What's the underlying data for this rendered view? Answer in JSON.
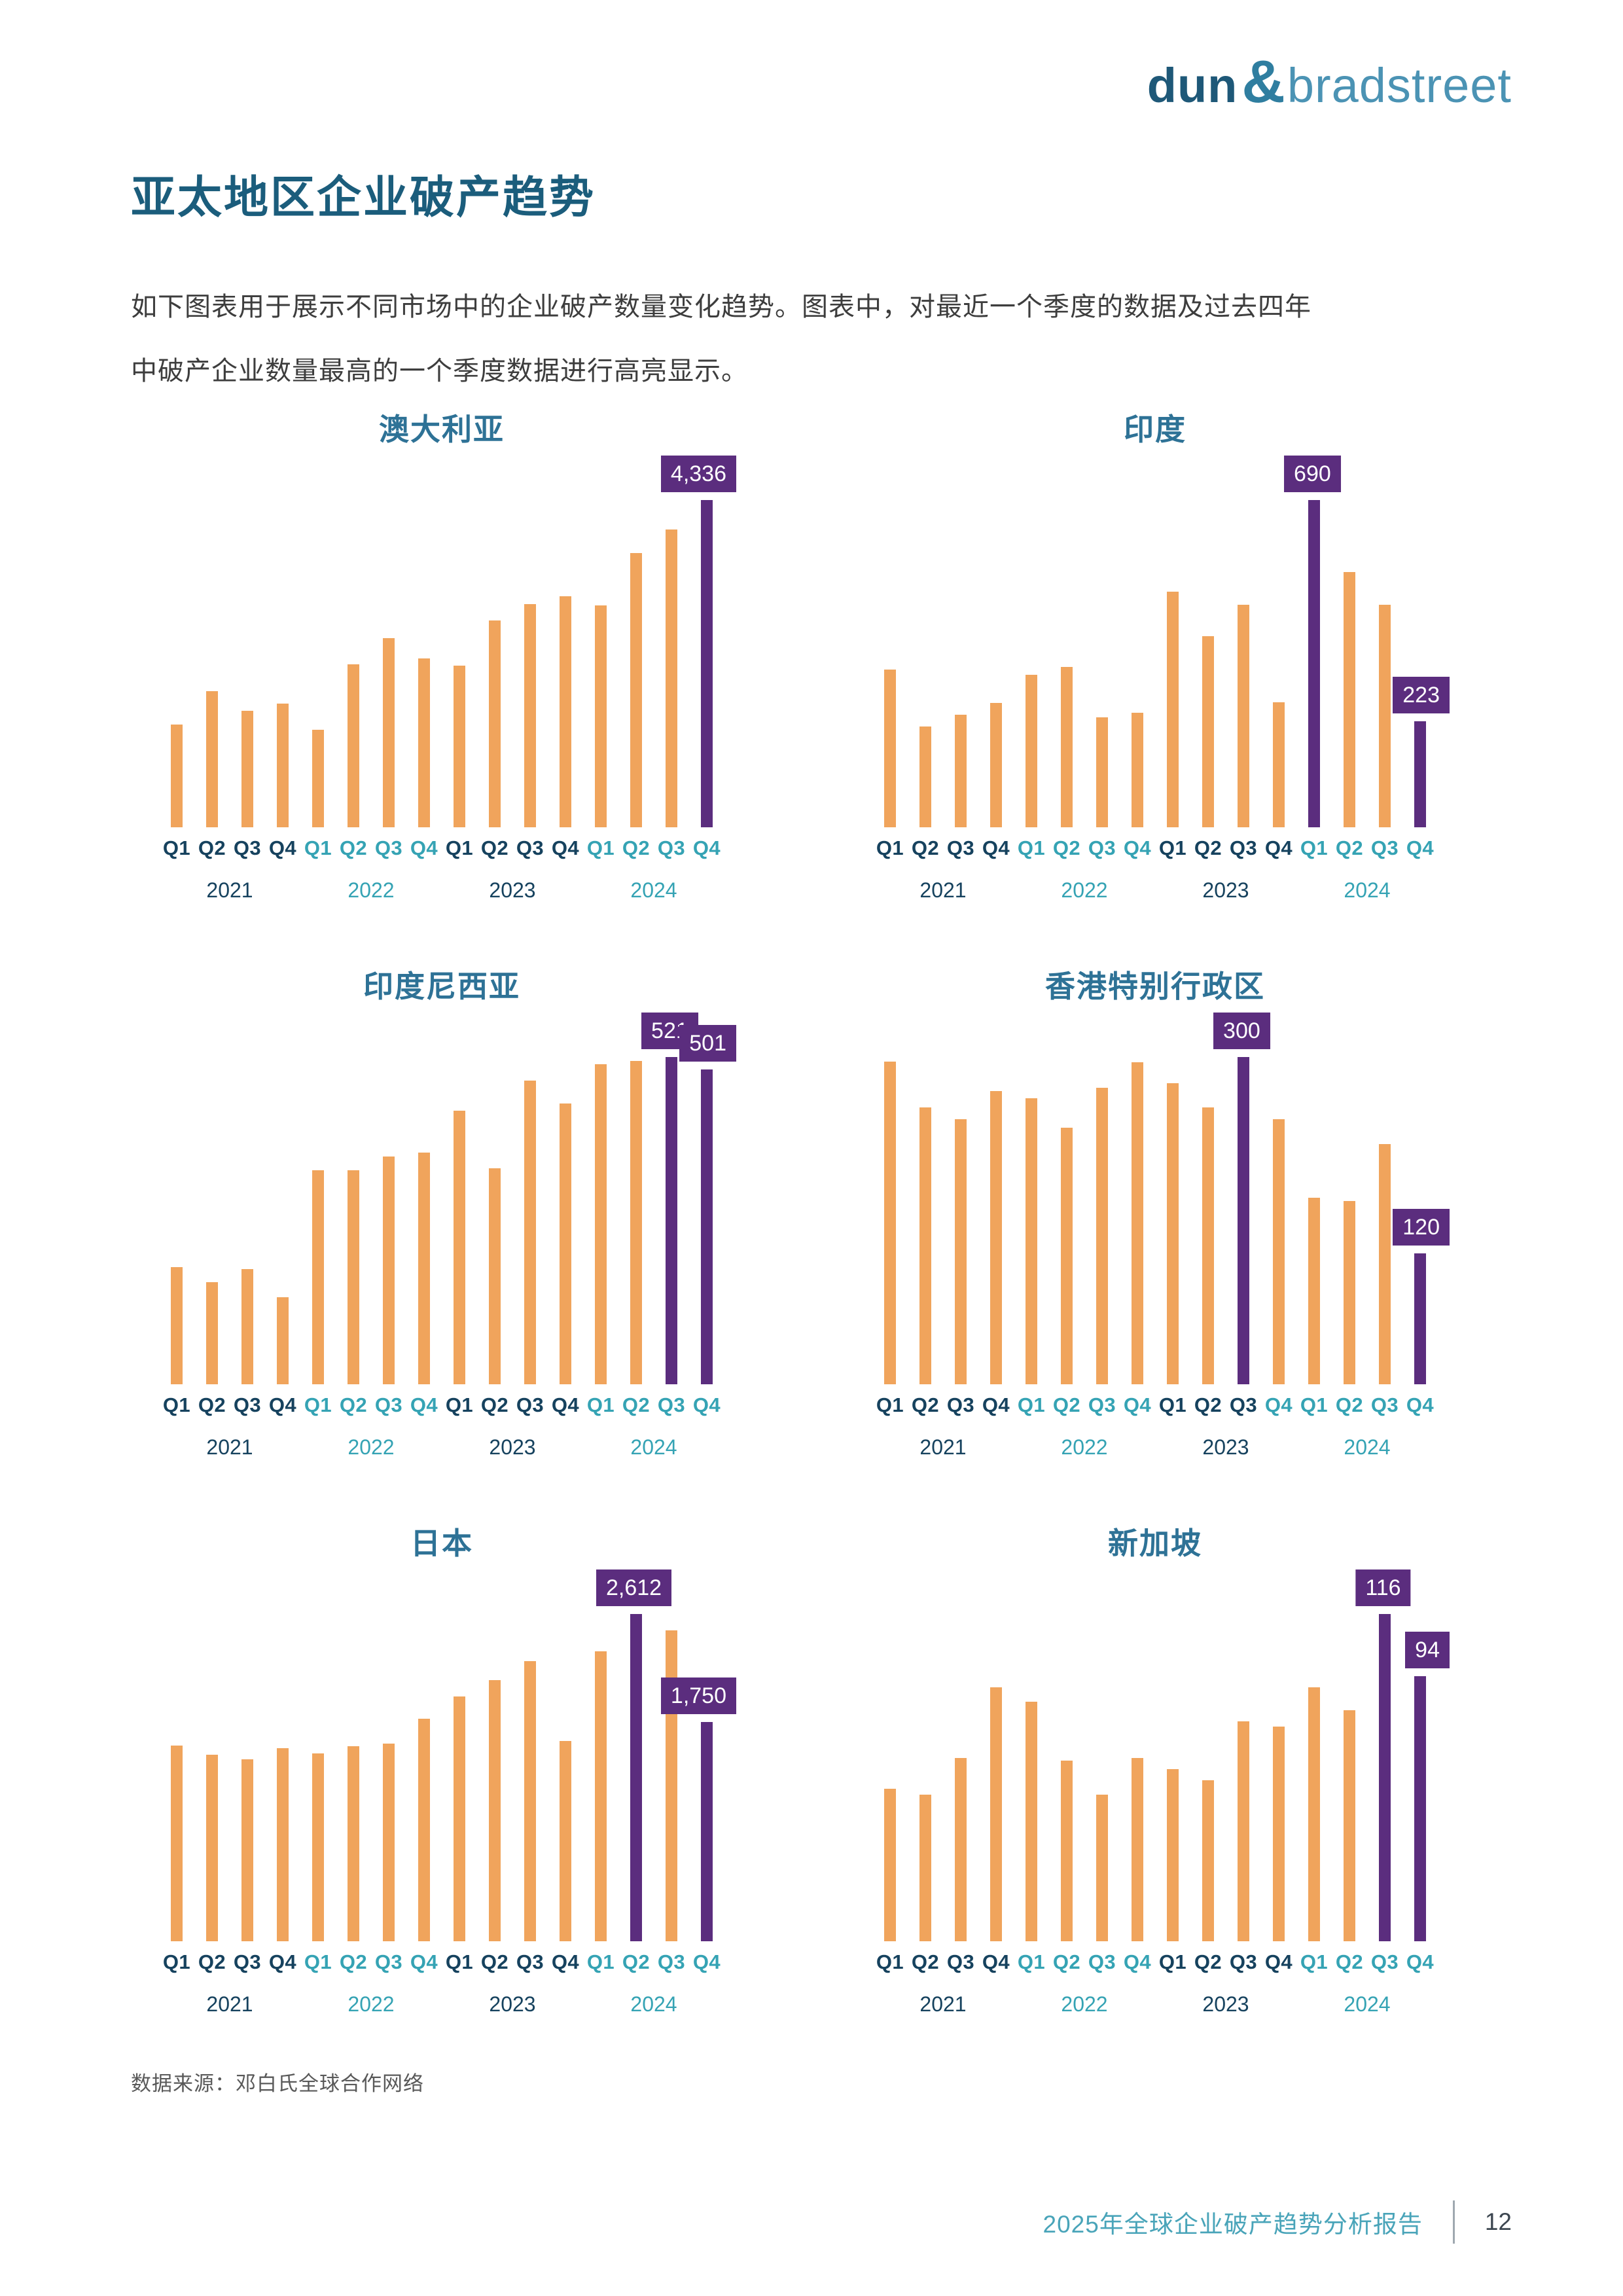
{
  "page": {
    "logo": {
      "dun": "dun",
      "amp": "&",
      "bradstreet": "bradstreet"
    },
    "title": "亚太地区企业破产趋势",
    "intro_line1": "如下图表用于展示不同市场中的企业破产数量变化趋势。图表中，对最近一个季度的数据及过去四年",
    "intro_line2": "中破产企业数量最高的一个季度数据进行高亮显示。",
    "source_note": "数据来源：邓白氏全球合作网络",
    "footer": {
      "report_title": "2025年全球企业破产趋势分析报告",
      "page_number": "12"
    }
  },
  "colors": {
    "bar_orange": "#F0A45C",
    "bar_purple": "#5B2D7E",
    "page_title": "#1B5D7C",
    "chart_title": "#2E7296",
    "label_dark": "#16425E",
    "label_teal": "#35A3B4",
    "logo_dark": "#1E5878",
    "logo_light": "#4B93B4",
    "footer_teal": "#49A4B9",
    "footer_page_number": "#3C4650",
    "intro_text": "#3D3D3D",
    "source_text": "#595959"
  },
  "axis": {
    "quarters": [
      "Q1",
      "Q2",
      "Q3",
      "Q4"
    ],
    "years": [
      "2021",
      "2022",
      "2023",
      "2024"
    ],
    "categories": [
      "2021-Q1",
      "2021-Q2",
      "2021-Q3",
      "2021-Q4",
      "2022-Q1",
      "2022-Q2",
      "2022-Q3",
      "2022-Q4",
      "2023-Q1",
      "2023-Q2",
      "2023-Q3",
      "2023-Q4",
      "2024-Q1",
      "2024-Q2",
      "2024-Q3",
      "2024-Q4"
    ]
  },
  "chart_data": [
    {
      "type": "bar",
      "title": "澳大利亚",
      "values": [
        1360,
        1800,
        1545,
        1640,
        1295,
        2155,
        2510,
        2235,
        2145,
        2740,
        2960,
        3060,
        2940,
        3635,
        3950,
        4336
      ],
      "highlight_indices": [
        15
      ],
      "value_labels": {
        "15": "4,336"
      },
      "x_label_colors": [
        "d",
        "d",
        "d",
        "d",
        "t",
        "t",
        "t",
        "t",
        "d",
        "d",
        "d",
        "d",
        "t",
        "t",
        "t",
        "t"
      ]
    },
    {
      "type": "bar",
      "title": "印度",
      "values": [
        333,
        212,
        237,
        262,
        322,
        338,
        232,
        241,
        497,
        403,
        469,
        264,
        690,
        538,
        469,
        223
      ],
      "highlight_indices": [
        12,
        15
      ],
      "value_labels": {
        "12": "690",
        "15": "223"
      },
      "x_label_colors": [
        "d",
        "d",
        "d",
        "d",
        "t",
        "t",
        "t",
        "t",
        "d",
        "d",
        "d",
        "d",
        "t",
        "t",
        "t",
        "t"
      ]
    },
    {
      "type": "bar",
      "title": "印度尼西亚",
      "values": [
        187,
        163,
        183,
        139,
        341,
        341,
        363,
        369,
        436,
        344,
        484,
        447,
        510,
        515,
        521,
        501
      ],
      "highlight_indices": [
        14,
        15
      ],
      "value_labels": {
        "14": "521",
        "15": "501"
      },
      "x_label_colors": [
        "d",
        "d",
        "d",
        "d",
        "t",
        "t",
        "t",
        "t",
        "d",
        "d",
        "d",
        "d",
        "t",
        "t",
        "t",
        "t"
      ]
    },
    {
      "type": "bar",
      "title": "香港特别行政区",
      "values": [
        296,
        254,
        243,
        269,
        262,
        235,
        272,
        295,
        276,
        254,
        300,
        243,
        171,
        168,
        220,
        120
      ],
      "highlight_indices": [
        10,
        15
      ],
      "value_labels": {
        "10": "300",
        "15": "120"
      },
      "x_label_colors": [
        "d",
        "d",
        "d",
        "d",
        "t",
        "t",
        "t",
        "t",
        "d",
        "d",
        "d",
        "t",
        "t",
        "t",
        "t",
        "t"
      ]
    },
    {
      "type": "bar",
      "title": "日本",
      "values": [
        1560,
        1490,
        1450,
        1540,
        1500,
        1555,
        1580,
        1775,
        1955,
        2085,
        2235,
        1600,
        2315,
        2612,
        2480,
        1750
      ],
      "highlight_indices": [
        13,
        15
      ],
      "value_labels": {
        "13": "2,612",
        "15": "1,750"
      },
      "x_label_colors": [
        "d",
        "d",
        "d",
        "d",
        "t",
        "t",
        "t",
        "t",
        "d",
        "d",
        "d",
        "d",
        "t",
        "t",
        "t",
        "t"
      ]
    },
    {
      "type": "bar",
      "title": "新加坡",
      "values": [
        54,
        52,
        65,
        90,
        85,
        64,
        52,
        65,
        61,
        57,
        78,
        76,
        90,
        82,
        116,
        94
      ],
      "highlight_indices": [
        14,
        15
      ],
      "value_labels": {
        "14": "116",
        "15": "94"
      },
      "x_label_colors": [
        "d",
        "d",
        "d",
        "d",
        "t",
        "t",
        "t",
        "t",
        "d",
        "d",
        "d",
        "d",
        "t",
        "t",
        "t",
        "t"
      ]
    }
  ]
}
